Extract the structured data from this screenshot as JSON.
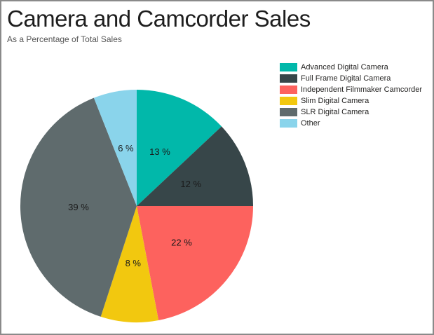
{
  "header": {
    "title": "Camera and Camcorder Sales",
    "subtitle": "As a Percentage of Total Sales"
  },
  "legend": {
    "position": "top-right",
    "items": [
      {
        "label": "Advanced Digital Camera",
        "color": "#01B8AA"
      },
      {
        "label": "Full Frame Digital Camera",
        "color": "#374649"
      },
      {
        "label": "Independent Filmmaker Camcorder",
        "color": "#FD625E"
      },
      {
        "label": "Slim Digital Camera",
        "color": "#F2C80F"
      },
      {
        "label": "SLR Digital Camera",
        "color": "#5F6B6D"
      },
      {
        "label": "Other",
        "color": "#8AD4EB"
      }
    ]
  },
  "chart_data": {
    "type": "pie",
    "title": "Camera and Camcorder Sales",
    "subtitle": "As a Percentage of Total Sales",
    "categories": [
      "Advanced Digital Camera",
      "Full Frame Digital Camera",
      "Independent Filmmaker Camcorder",
      "Slim Digital Camera",
      "SLR Digital Camera",
      "Other"
    ],
    "values": [
      13,
      12,
      22,
      8,
      39,
      6
    ],
    "unit": "%",
    "slice_labels": [
      "13 %",
      "12 %",
      "22 %",
      "8 %",
      "39 %",
      "6 %"
    ],
    "colors": [
      "#01B8AA",
      "#374649",
      "#FD625E",
      "#F2C80F",
      "#5F6B6D",
      "#8AD4EB"
    ],
    "start_angle_deg": 0,
    "direction": "clockwise",
    "legend_position": "top-right",
    "label_color": "#1a1a1a"
  },
  "frame": {
    "background": "#FFFFFF",
    "border_color": "#8A8A8A"
  }
}
